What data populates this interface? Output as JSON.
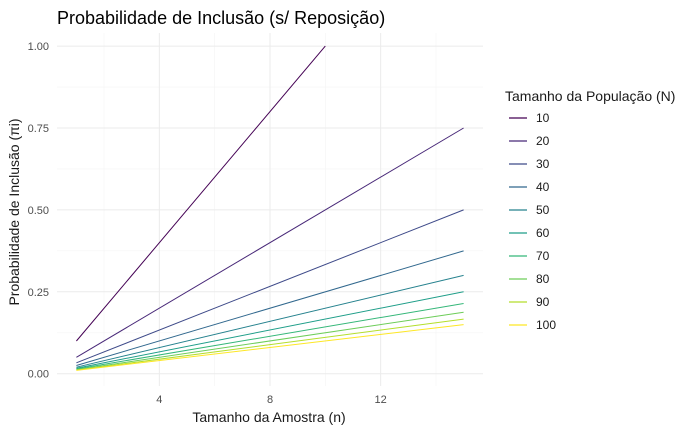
{
  "chart_data": {
    "type": "line",
    "title": "Probabilidade de Inclusão (s/ Reposição)",
    "xlabel": "Tamanho da Amostra (n)",
    "ylabel": "Probabilidade de Inclusão (πi)",
    "xlim": [
      0.3,
      15.7
    ],
    "ylim": [
      -0.0375,
      1.04
    ],
    "xticks": [
      4,
      8,
      12
    ],
    "yticks": [
      0.0,
      0.25,
      0.5,
      0.75,
      1.0
    ],
    "ytick_labels": [
      "0.00",
      "0.25",
      "0.50",
      "0.75",
      "1.00"
    ],
    "grid": true,
    "legend": {
      "title": "Tamanho da População (N)",
      "placement": "right"
    },
    "series": [
      {
        "name": "10",
        "color": "#440154",
        "x": [
          1,
          10
        ],
        "y": [
          0.1,
          1.0
        ]
      },
      {
        "name": "20",
        "color": "#482878",
        "x": [
          1,
          15
        ],
        "y": [
          0.05,
          0.75
        ]
      },
      {
        "name": "30",
        "color": "#3E4A89",
        "x": [
          1,
          15
        ],
        "y": [
          0.0333,
          0.5
        ]
      },
      {
        "name": "40",
        "color": "#31688E",
        "x": [
          1,
          15
        ],
        "y": [
          0.025,
          0.375
        ]
      },
      {
        "name": "50",
        "color": "#26828E",
        "x": [
          1,
          15
        ],
        "y": [
          0.02,
          0.3
        ]
      },
      {
        "name": "60",
        "color": "#1F9E89",
        "x": [
          1,
          15
        ],
        "y": [
          0.0167,
          0.25
        ]
      },
      {
        "name": "70",
        "color": "#35B779",
        "x": [
          1,
          15
        ],
        "y": [
          0.0143,
          0.2143
        ]
      },
      {
        "name": "80",
        "color": "#6DCD59",
        "x": [
          1,
          15
        ],
        "y": [
          0.0125,
          0.1875
        ]
      },
      {
        "name": "90",
        "color": "#B4DE2C",
        "x": [
          1,
          15
        ],
        "y": [
          0.0111,
          0.1667
        ]
      },
      {
        "name": "100",
        "color": "#FDE725",
        "x": [
          1,
          15
        ],
        "y": [
          0.01,
          0.15
        ]
      }
    ]
  }
}
